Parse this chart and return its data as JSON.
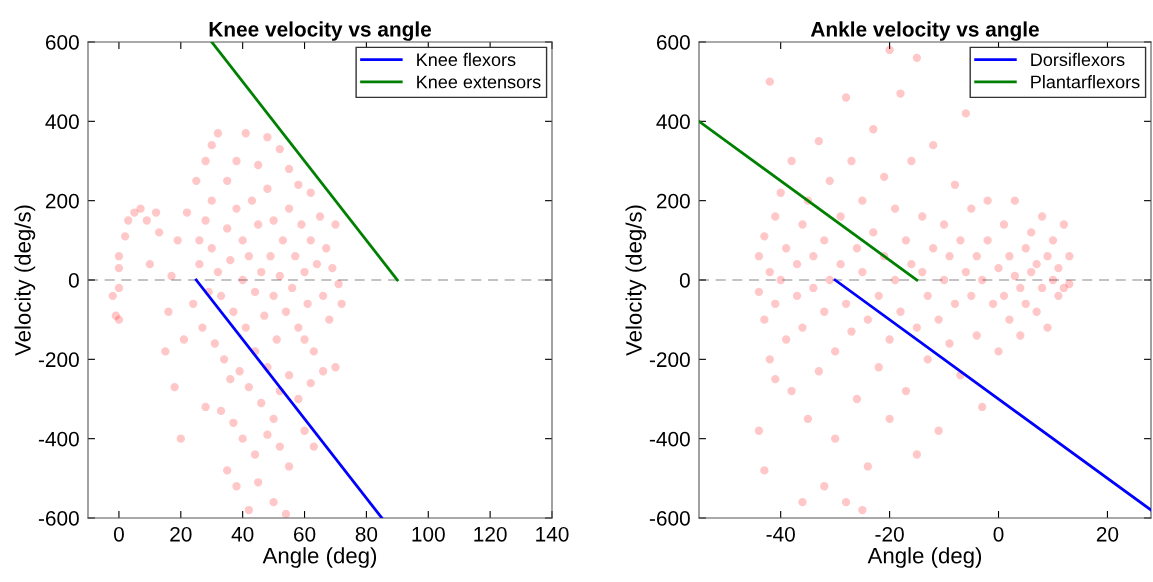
{
  "chart_data": [
    {
      "type": "scatter",
      "title": "Knee velocity vs angle",
      "xlabel": "Angle (deg)",
      "ylabel": "Velocity (deg/s)",
      "xlim": [
        -10,
        140
      ],
      "xticks": [
        0,
        20,
        40,
        60,
        80,
        100,
        120,
        140
      ],
      "ylim": [
        -600,
        600
      ],
      "yticks": [
        -600,
        -400,
        -200,
        0,
        200,
        400,
        600
      ],
      "legend": "top right",
      "grid": false,
      "ref_lines": [
        {
          "axis": "y",
          "value": 0,
          "color": "#b0b0b0",
          "line_style": "dashed"
        }
      ],
      "series": [
        {
          "marker": "circle",
          "color": "#ff0000",
          "x": [
            -2,
            -1,
            0,
            0,
            0,
            0,
            2,
            3,
            5,
            7,
            9,
            12,
            10,
            13,
            16,
            15,
            18,
            20,
            17,
            19,
            22,
            21,
            25,
            28,
            30,
            32,
            35,
            38,
            41,
            45,
            48,
            52,
            55,
            58,
            62,
            28,
            30,
            32,
            33,
            35,
            36,
            37,
            38,
            40,
            40,
            41,
            42,
            43,
            44,
            45,
            46,
            47,
            48,
            49,
            50,
            50,
            51,
            52,
            53,
            54,
            55,
            56,
            57,
            58,
            59,
            60,
            61,
            62,
            63,
            64,
            65,
            66,
            67,
            68,
            69,
            71,
            70,
            24,
            26,
            27,
            29,
            31,
            34,
            26,
            30,
            36,
            39,
            42,
            44,
            46,
            48,
            52,
            55,
            58,
            62,
            66,
            70,
            33,
            37,
            40,
            44,
            48,
            52,
            55,
            60,
            63,
            35,
            38,
            42,
            45,
            50,
            54,
            28,
            72,
            60,
            50
          ],
          "values": [
            -40,
            -90,
            -100,
            -20,
            30,
            60,
            110,
            150,
            170,
            180,
            150,
            170,
            40,
            120,
            -80,
            -180,
            -270,
            -400,
            10,
            100,
            170,
            -150,
            250,
            300,
            340,
            370,
            250,
            300,
            370,
            290,
            360,
            330,
            280,
            240,
            220,
            150,
            80,
            20,
            -40,
            130,
            50,
            -80,
            180,
            0,
            100,
            -120,
            60,
            200,
            -30,
            140,
            20,
            -90,
            230,
            60,
            -40,
            150,
            -150,
            10,
            100,
            -80,
            180,
            -20,
            60,
            -120,
            140,
            20,
            -60,
            100,
            -180,
            40,
            160,
            -40,
            80,
            -100,
            30,
            -10,
            140,
            -60,
            40,
            -120,
            -30,
            -160,
            -200,
            100,
            200,
            -250,
            -230,
            -270,
            -180,
            -310,
            -220,
            -280,
            -240,
            -300,
            -260,
            -230,
            -220,
            -330,
            -360,
            -400,
            -440,
            -390,
            -420,
            -470,
            -380,
            -420,
            -480,
            -520,
            -580,
            -510,
            -560,
            -590,
            -320,
            -60,
            -150,
            -350
          ]
        },
        {
          "type": "line",
          "marker": "none",
          "name": "Knee flexors",
          "color": "#0000ff",
          "x": [
            25,
            85
          ],
          "values": [
            0,
            -600
          ]
        },
        {
          "type": "line",
          "marker": "none",
          "name": "Knee extensors",
          "color": "#008000",
          "x": [
            30,
            90
          ],
          "values": [
            600,
            0
          ]
        }
      ]
    },
    {
      "type": "scatter",
      "title": "Ankle velocity vs angle",
      "xlabel": "Angle (deg)",
      "ylabel": "Velocity (deg/s)",
      "xlim": [
        -55,
        28
      ],
      "xticks": [
        -40,
        -20,
        0,
        20
      ],
      "ylim": [
        -600,
        600
      ],
      "yticks": [
        -600,
        -400,
        -200,
        0,
        200,
        400,
        600
      ],
      "legend": "top right",
      "grid": false,
      "ref_lines": [
        {
          "axis": "y",
          "value": 0,
          "color": "#b0b0b0",
          "line_style": "dashed"
        }
      ],
      "series": [
        {
          "marker": "circle",
          "color": "#ff0000",
          "x": [
            -44,
            -44,
            -43,
            -43,
            -42,
            -42,
            -41,
            -41,
            -40,
            -40,
            -39,
            -39,
            -38,
            -38,
            -37,
            -37,
            -36,
            -36,
            -35,
            -35,
            -34,
            -34,
            -33,
            -33,
            -32,
            -32,
            -31,
            -31,
            -30,
            -30,
            -29,
            -29,
            -28,
            -28,
            -27,
            -27,
            -26,
            -26,
            -25,
            -25,
            -24,
            -24,
            -23,
            -23,
            -22,
            -22,
            -21,
            -21,
            -20,
            -20,
            -19,
            -19,
            -18,
            -18,
            -17,
            -17,
            -16,
            -16,
            -15,
            -15,
            -14,
            -14,
            -13,
            -13,
            -12,
            -12,
            -11,
            -11,
            -10,
            -10,
            -9,
            -9,
            -8,
            -8,
            -7,
            -7,
            -6,
            -6,
            -5,
            -5,
            -4,
            -4,
            -3,
            -3,
            -2,
            -2,
            -1,
            0,
            0,
            1,
            1,
            2,
            2,
            3,
            3,
            4,
            4,
            5,
            5,
            6,
            6,
            7,
            7,
            8,
            8,
            9,
            9,
            10,
            10,
            11,
            11,
            12,
            12,
            13,
            13,
            -44,
            -43,
            -42,
            -41,
            -36,
            -32,
            -25,
            -20,
            -15,
            -28
          ],
          "values": [
            -30,
            60,
            110,
            -100,
            20,
            -200,
            160,
            -60,
            0,
            220,
            -150,
            80,
            -280,
            300,
            40,
            -40,
            140,
            -120,
            -350,
            200,
            -20,
            60,
            -230,
            350,
            100,
            -80,
            0,
            250,
            -180,
            -400,
            40,
            160,
            -60,
            460,
            300,
            -130,
            80,
            -300,
            20,
            200,
            -100,
            -470,
            120,
            380,
            -40,
            -220,
            60,
            260,
            -150,
            -350,
            0,
            180,
            -80,
            470,
            100,
            -280,
            40,
            300,
            -120,
            -440,
            20,
            160,
            -40,
            -200,
            80,
            340,
            -100,
            -380,
            140,
            0,
            -160,
            60,
            240,
            -60,
            -240,
            100,
            20,
            420,
            -40,
            180,
            -140,
            60,
            0,
            -320,
            100,
            200,
            -60,
            30,
            -180,
            140,
            -40,
            60,
            -100,
            10,
            200,
            -20,
            -140,
            80,
            -60,
            120,
            20,
            -80,
            40,
            160,
            -20,
            60,
            -120,
            0,
            100,
            -40,
            30,
            140,
            -20,
            60,
            -10,
            -380,
            -480,
            500,
            -250,
            -560,
            -520,
            -580,
            580,
            560,
            -560
          ]
        },
        {
          "type": "line",
          "marker": "none",
          "name": "Dorsiflexors",
          "color": "#0000ff",
          "x": [
            -30,
            28
          ],
          "values": [
            0,
            -580
          ]
        },
        {
          "type": "line",
          "marker": "none",
          "name": "Plantarflexors",
          "color": "#008000",
          "x": [
            -55,
            -15
          ],
          "values": [
            400,
            0
          ]
        }
      ]
    }
  ]
}
